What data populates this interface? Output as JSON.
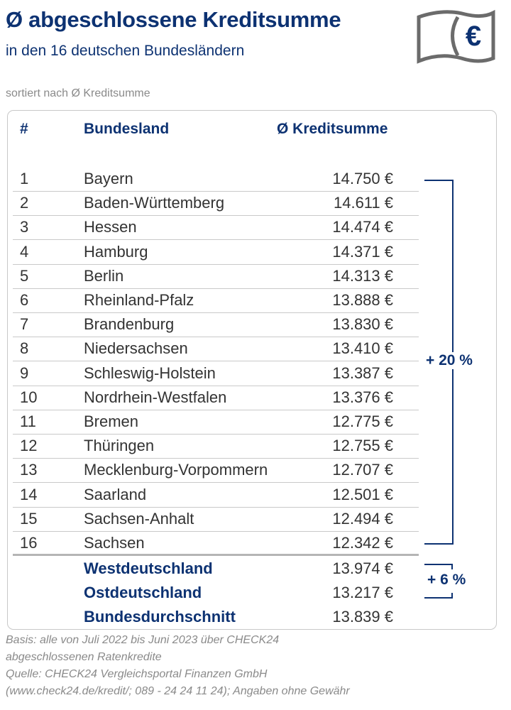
{
  "header": {
    "title": "Ø abgeschlossene Kreditsumme",
    "subtitle": "in den 16 deutschen Bundesländern",
    "sort_note": "sortiert nach Ø Kreditsumme",
    "icon": "euro-banknote-icon",
    "icon_symbol": "€"
  },
  "colors": {
    "accent": "#0d3272",
    "text": "#333333",
    "muted": "#8a8a8a"
  },
  "chart_data": {
    "type": "table",
    "columns": [
      "#",
      "Bundesland",
      "Ø Kreditsumme"
    ],
    "rows": [
      {
        "rank": "1",
        "state": "Bayern",
        "value": "14.750 €"
      },
      {
        "rank": "2",
        "state": "Baden-Württemberg",
        "value": "14.611 €"
      },
      {
        "rank": "3",
        "state": "Hessen",
        "value": "14.474 €"
      },
      {
        "rank": "4",
        "state": "Hamburg",
        "value": "14.371 €"
      },
      {
        "rank": "5",
        "state": "Berlin",
        "value": "14.313 €"
      },
      {
        "rank": "6",
        "state": "Rheinland-Pfalz",
        "value": "13.888 €"
      },
      {
        "rank": "7",
        "state": "Brandenburg",
        "value": "13.830 €"
      },
      {
        "rank": "8",
        "state": "Niedersachsen",
        "value": "13.410 €"
      },
      {
        "rank": "9",
        "state": "Schleswig-Holstein",
        "value": "13.387 €"
      },
      {
        "rank": "10",
        "state": "Nordrhein-Westfalen",
        "value": "13.376 €"
      },
      {
        "rank": "11",
        "state": "Bremen",
        "value": "12.775 €"
      },
      {
        "rank": "12",
        "state": "Thüringen",
        "value": "12.755 €"
      },
      {
        "rank": "13",
        "state": "Mecklenburg-Vorpommern",
        "value": "12.707 €"
      },
      {
        "rank": "14",
        "state": "Saarland",
        "value": "12.501 €"
      },
      {
        "rank": "15",
        "state": "Sachsen-Anhalt",
        "value": "12.494 €"
      },
      {
        "rank": "16",
        "state": "Sachsen",
        "value": "12.342 €"
      }
    ],
    "summary": [
      {
        "label": "Westdeutschland",
        "value": "13.974 €"
      },
      {
        "label": "Ostdeutschland",
        "value": "13.217 €"
      },
      {
        "label": "Bundesdurchschnitt",
        "value": "13.839 €"
      }
    ],
    "annotations": {
      "range_all": "+ 20 %",
      "east_west": "+ 6 %"
    }
  },
  "footer": [
    "Basis: alle von Juli 2022 bis Juni 2023 über CHECK24",
    "abgeschlossenen Ratenkredite",
    "Quelle: CHECK24 Vergleichsportal Finanzen GmbH",
    "(www.check24.de/kredit/; 089 - 24 24 11 24); Angaben ohne Gewähr"
  ]
}
